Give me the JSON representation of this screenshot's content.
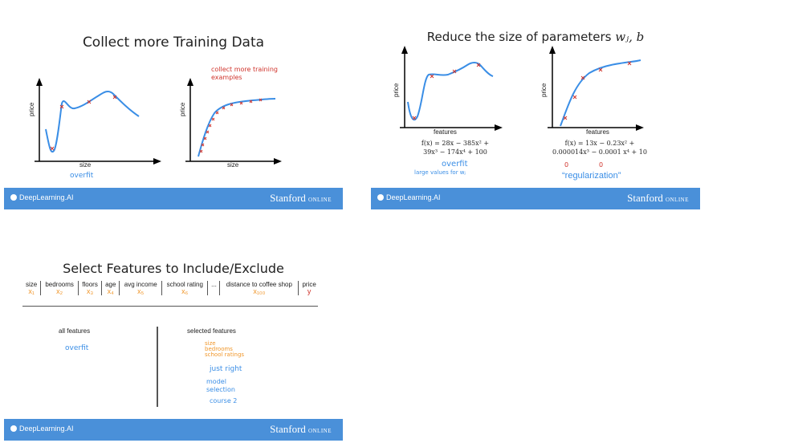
{
  "slides": [
    {
      "title": "Collect more Training Data",
      "left_plot": {
        "xlabel": "size",
        "ylabel": "price",
        "annotation": "overfit"
      },
      "right_plot": {
        "xlabel": "size",
        "ylabel": "price",
        "annotation": "collect more training examples"
      },
      "footer": {
        "left": "DeepLearning.AI",
        "right": "Stanford",
        "right_small": "ONLINE"
      }
    },
    {
      "title_text": "Reduce the size of parameters ",
      "title_math": "wⱼ, b",
      "left_plot": {
        "xlabel": "features",
        "ylabel": "price",
        "eq_line1": "f(x) = 28x − 385x² +",
        "eq_line2": "39x³ − 174x⁴ + 100",
        "note1": "overfit",
        "note2": "large values for wⱼ"
      },
      "right_plot": {
        "xlabel": "features",
        "ylabel": "price",
        "eq_line1": "f(x) = 13x − 0.23x² +",
        "eq_line2": "0.000014x³ − 0.0001 x⁴ + 10",
        "zero1": "0",
        "zero2": "0",
        "note": "“regularization”"
      },
      "footer": {
        "left": "DeepLearning.AI",
        "right": "Stanford",
        "right_small": "ONLINE"
      }
    },
    {
      "title": "Select Features to Include/Exclude",
      "table": {
        "headers": [
          "size",
          "bedrooms",
          "floors",
          "age",
          "avg income",
          "school rating",
          "...",
          "distance to coffee shop",
          "price"
        ],
        "symbols": [
          "x₁",
          "x₂",
          "x₃",
          "x₄",
          "x₅",
          "x₆",
          "",
          "x₁₀₀",
          "y"
        ]
      },
      "all_features": {
        "heading": "all features",
        "note": "overfit"
      },
      "selected_features": {
        "heading": "selected features",
        "items": [
          "size",
          "bedrooms",
          "school ratings"
        ],
        "notes": [
          "just right",
          "model",
          "selection",
          "course 2"
        ]
      },
      "footer": {
        "left": "DeepLearning.AI",
        "right": "Stanford",
        "right_small": "ONLINE"
      }
    }
  ],
  "colors": {
    "footer": "#4a90d9",
    "curve": "#3a8ee6",
    "cross": "#d0342c",
    "accent_orange": "#f0962a"
  }
}
